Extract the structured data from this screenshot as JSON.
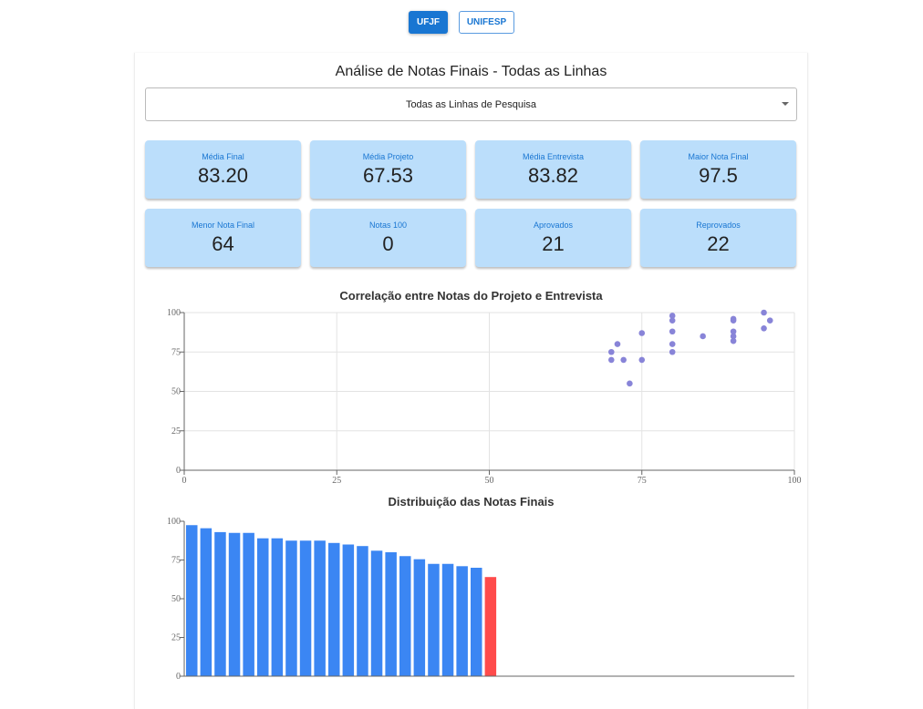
{
  "tabs": [
    {
      "label": "UFJF",
      "active": true
    },
    {
      "label": "UNIFESP",
      "active": false
    }
  ],
  "title": "Análise de Notas Finais - Todas as Linhas",
  "select": {
    "value": "Todas as Linhas de Pesquisa"
  },
  "cards": [
    {
      "label": "Média Final",
      "value": "83.20"
    },
    {
      "label": "Média Projeto",
      "value": "67.53"
    },
    {
      "label": "Média Entrevista",
      "value": "83.82"
    },
    {
      "label": "Maior Nota Final",
      "value": "97.5"
    },
    {
      "label": "Menor Nota Final",
      "value": "64"
    },
    {
      "label": "Notas 100",
      "value": "0"
    },
    {
      "label": "Aprovados",
      "value": "21"
    },
    {
      "label": "Reprovados",
      "value": "22"
    }
  ],
  "chart_data": [
    {
      "type": "scatter",
      "title": "Correlação entre Notas do Projeto e Entrevista",
      "xlim": [
        0,
        100
      ],
      "ylim": [
        0,
        100
      ],
      "xticks": [
        0,
        25,
        50,
        75,
        100
      ],
      "yticks": [
        0,
        25,
        50,
        75,
        100
      ],
      "color": "#8884d8",
      "points": [
        [
          95,
          100
        ],
        [
          96,
          95
        ],
        [
          95,
          90
        ],
        [
          90,
          96
        ],
        [
          90,
          95
        ],
        [
          90,
          88
        ],
        [
          90,
          85
        ],
        [
          90,
          82
        ],
        [
          85,
          85
        ],
        [
          80,
          98
        ],
        [
          80,
          95
        ],
        [
          80,
          88
        ],
        [
          80,
          80
        ],
        [
          80,
          75
        ],
        [
          75,
          87
        ],
        [
          75,
          70
        ],
        [
          71,
          80
        ],
        [
          70,
          75
        ],
        [
          70,
          70
        ],
        [
          72,
          70
        ],
        [
          73,
          55
        ]
      ]
    },
    {
      "type": "bar",
      "title": "Distribuição das Notas Finais",
      "ylim": [
        0,
        100
      ],
      "yticks": [
        0,
        25,
        50,
        75,
        100
      ],
      "pass_color": "#3b86f3",
      "fail_color": "#ff4b4b",
      "values": [
        97.5,
        95.5,
        93,
        92.5,
        92.5,
        89,
        89,
        87.5,
        87.5,
        87.5,
        86,
        85,
        84,
        81,
        80,
        77.5,
        75.5,
        72.5,
        72.5,
        71,
        70,
        64
      ],
      "failed": [
        false,
        false,
        false,
        false,
        false,
        false,
        false,
        false,
        false,
        false,
        false,
        false,
        false,
        false,
        false,
        false,
        false,
        false,
        false,
        false,
        false,
        true
      ]
    }
  ]
}
